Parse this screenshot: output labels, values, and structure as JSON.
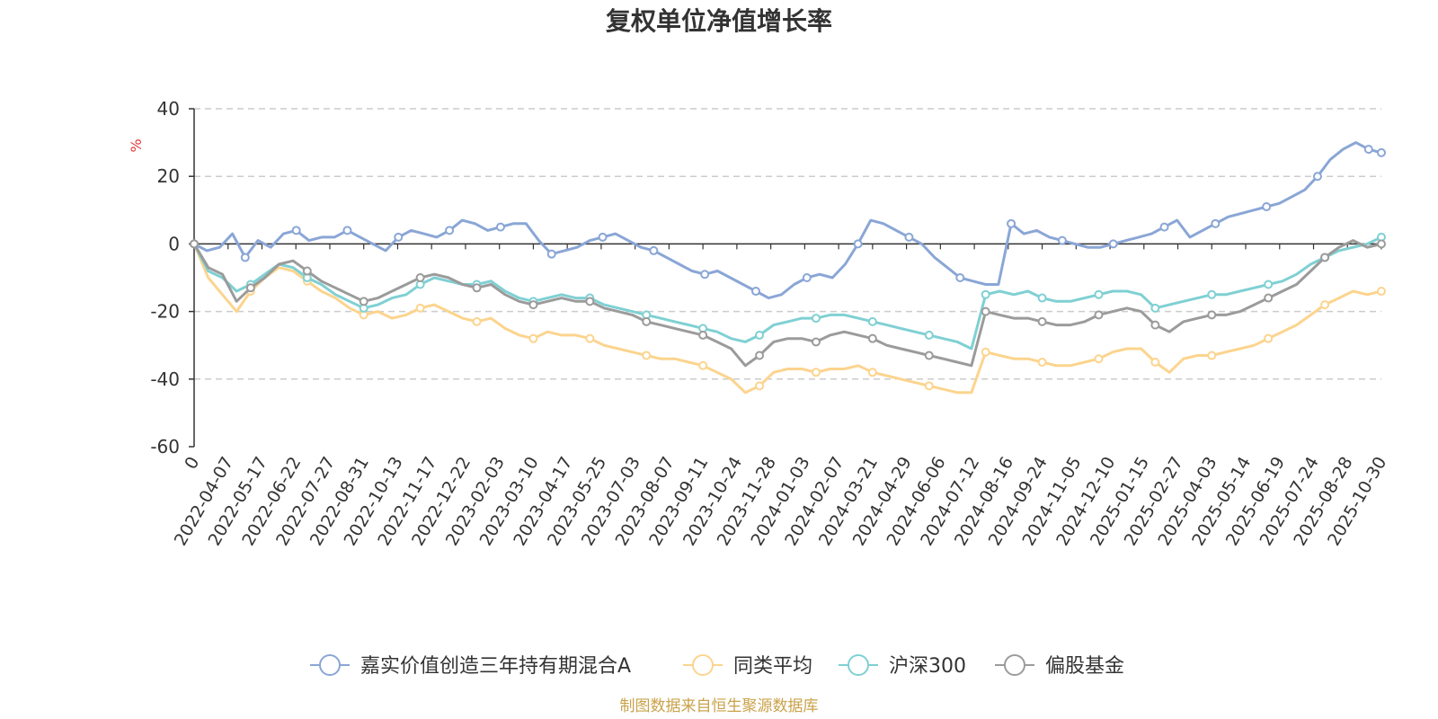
{
  "chart_data": {
    "type": "line",
    "title": "复权单位净值增长率",
    "ylabel": "%",
    "ylim": [
      -60,
      40
    ],
    "yticks": [
      40,
      20,
      0,
      -20,
      -40,
      -60
    ],
    "xticks": [
      "0",
      "2022-04-07",
      "2022-05-17",
      "2022-06-22",
      "2022-07-27",
      "2022-08-31",
      "2022-10-13",
      "2022-11-17",
      "2022-12-22",
      "2023-02-03",
      "2023-03-10",
      "2023-04-17",
      "2023-05-25",
      "2023-07-03",
      "2023-08-07",
      "2023-09-11",
      "2023-10-24",
      "2023-11-28",
      "2024-01-03",
      "2024-02-07",
      "2024-03-21",
      "2024-04-29",
      "2024-06-06",
      "2024-07-12",
      "2024-08-16",
      "2024-09-24",
      "2024-11-05",
      "2024-12-10",
      "2025-01-15",
      "2025-02-27",
      "2025-04-03",
      "2025-05-14",
      "2025-06-19",
      "2025-07-24",
      "2025-08-28",
      "2025-10-30"
    ],
    "grid": true,
    "legend_position": "bottom",
    "series": [
      {
        "name": "嘉实价值创造三年持有期混合A",
        "color": "#8aa6d6",
        "values": [
          0,
          -2,
          -1,
          3,
          -4,
          1,
          -1,
          3,
          4,
          1,
          2,
          2,
          4,
          2,
          0,
          -2,
          2,
          4,
          3,
          2,
          4,
          7,
          6,
          4,
          5,
          6,
          6,
          1,
          -3,
          -2,
          -1,
          1,
          2,
          3,
          1,
          -1,
          -2,
          -4,
          -6,
          -8,
          -9,
          -8,
          -10,
          -12,
          -14,
          -16,
          -15,
          -12,
          -10,
          -9,
          -10,
          -6,
          0,
          7,
          6,
          4,
          2,
          0,
          -4,
          -7,
          -10,
          -11,
          -12,
          -12,
          6,
          3,
          4,
          2,
          1,
          0,
          -1,
          -1,
          0,
          1,
          2,
          3,
          5,
          7,
          2,
          4,
          6,
          8,
          9,
          10,
          11,
          12,
          14,
          16,
          20,
          25,
          28,
          30,
          28,
          27
        ]
      },
      {
        "name": "同类平均",
        "color": "#fcd48e",
        "values": [
          0,
          -10,
          -15,
          -20,
          -14,
          -10,
          -7,
          -8,
          -11,
          -14,
          -16,
          -19,
          -21,
          -20,
          -22,
          -21,
          -19,
          -18,
          -20,
          -22,
          -23,
          -22,
          -25,
          -27,
          -28,
          -26,
          -27,
          -27,
          -28,
          -30,
          -31,
          -32,
          -33,
          -34,
          -34,
          -35,
          -36,
          -38,
          -40,
          -44,
          -42,
          -38,
          -37,
          -37,
          -38,
          -37,
          -37,
          -36,
          -38,
          -39,
          -40,
          -41,
          -42,
          -43,
          -44,
          -44,
          -32,
          -33,
          -34,
          -34,
          -35,
          -36,
          -36,
          -35,
          -34,
          -32,
          -31,
          -31,
          -35,
          -38,
          -34,
          -33,
          -33,
          -32,
          -31,
          -30,
          -28,
          -26,
          -24,
          -21,
          -18,
          -16,
          -14,
          -15,
          -14
        ]
      },
      {
        "name": "沪深300",
        "color": "#7fd0d3",
        "values": [
          0,
          -8,
          -10,
          -14,
          -12,
          -9,
          -6,
          -7,
          -10,
          -12,
          -15,
          -17,
          -19,
          -18,
          -16,
          -15,
          -12,
          -10,
          -11,
          -12,
          -12,
          -11,
          -14,
          -16,
          -17,
          -16,
          -15,
          -16,
          -16,
          -18,
          -19,
          -20,
          -21,
          -22,
          -23,
          -24,
          -25,
          -26,
          -28,
          -29,
          -27,
          -24,
          -23,
          -22,
          -22,
          -21,
          -21,
          -22,
          -23,
          -24,
          -25,
          -26,
          -27,
          -28,
          -29,
          -31,
          -15,
          -14,
          -15,
          -14,
          -16,
          -17,
          -17,
          -16,
          -15,
          -14,
          -14,
          -15,
          -19,
          -18,
          -17,
          -16,
          -15,
          -15,
          -14,
          -13,
          -12,
          -11,
          -9,
          -6,
          -4,
          -2,
          -1,
          0,
          2
        ]
      },
      {
        "name": "偏股基金",
        "color": "#9b9b9b",
        "values": [
          0,
          -7,
          -9,
          -17,
          -13,
          -10,
          -6,
          -5,
          -8,
          -11,
          -13,
          -15,
          -17,
          -16,
          -14,
          -12,
          -10,
          -9,
          -10,
          -12,
          -13,
          -12,
          -15,
          -17,
          -18,
          -17,
          -16,
          -17,
          -17,
          -19,
          -20,
          -21,
          -23,
          -24,
          -25,
          -26,
          -27,
          -29,
          -31,
          -36,
          -33,
          -29,
          -28,
          -28,
          -29,
          -27,
          -26,
          -27,
          -28,
          -30,
          -31,
          -32,
          -33,
          -34,
          -35,
          -36,
          -20,
          -21,
          -22,
          -22,
          -23,
          -24,
          -24,
          -23,
          -21,
          -20,
          -19,
          -20,
          -24,
          -26,
          -23,
          -22,
          -21,
          -21,
          -20,
          -18,
          -16,
          -14,
          -12,
          -8,
          -4,
          -1,
          1,
          -1,
          0
        ]
      }
    ]
  },
  "source_note": "制图数据来自恒生聚源数据库"
}
